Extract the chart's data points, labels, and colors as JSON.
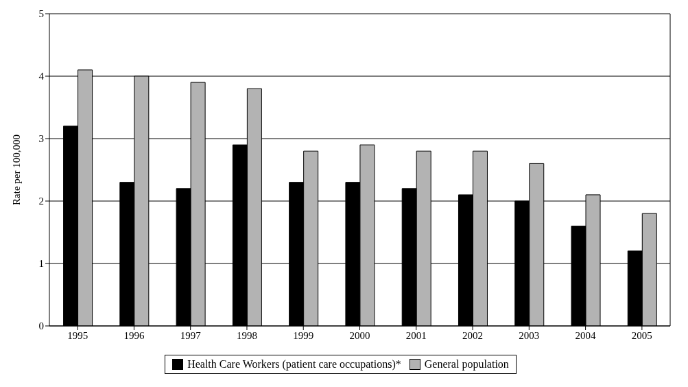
{
  "chart_data": {
    "type": "bar",
    "ylabel": "Rate per 100,000",
    "categories": [
      "1995",
      "1996",
      "1997",
      "1998",
      "1999",
      "2000",
      "2001",
      "2002",
      "2003",
      "2004",
      "2005"
    ],
    "series": [
      {
        "name": "Health Care Workers (patient care occupations)*",
        "color": "#000000",
        "values": [
          3.2,
          2.3,
          2.2,
          2.9,
          2.3,
          2.3,
          2.2,
          2.1,
          2.0,
          1.6,
          1.2
        ]
      },
      {
        "name": "General population",
        "color": "#b3b3b3",
        "values": [
          4.1,
          4.0,
          3.9,
          3.8,
          2.8,
          2.9,
          2.8,
          2.8,
          2.6,
          2.1,
          1.8
        ]
      }
    ],
    "ylim": [
      0,
      5
    ],
    "yticks": [
      0,
      1,
      2,
      3,
      4,
      5
    ],
    "grid": "y",
    "legend": "bottom"
  }
}
